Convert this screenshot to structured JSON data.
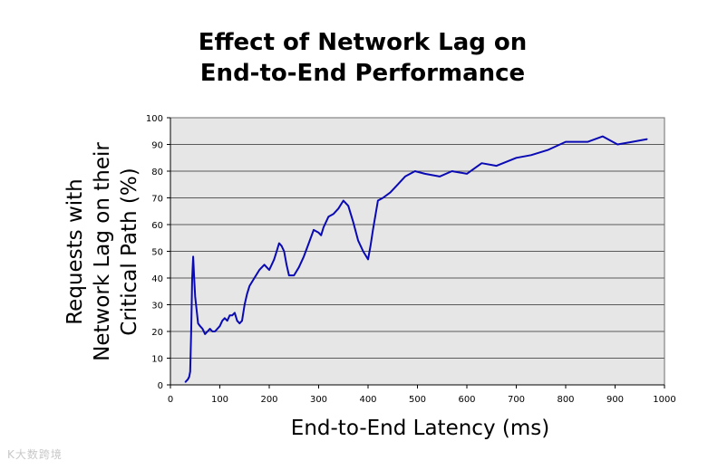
{
  "watermark": "K大数跨境",
  "chart_data": {
    "type": "line",
    "title": [
      "Effect of Network Lag on",
      "End-to-End Performance"
    ],
    "xlabel": "End-to-End Latency (ms)",
    "ylabel": [
      "Requests with",
      "Network Lag on their",
      "Critical Path (%)"
    ],
    "xlim": [
      0,
      1000
    ],
    "ylim": [
      0,
      100
    ],
    "xticks": [
      0,
      100,
      200,
      300,
      400,
      500,
      600,
      700,
      800,
      900,
      1000
    ],
    "yticks": [
      0,
      10,
      20,
      30,
      40,
      50,
      60,
      70,
      80,
      90,
      100
    ],
    "grid": "horizontal",
    "plot_background": "#e6e6e6",
    "line_color": "#0a0ab4",
    "series": [
      {
        "x": [
          30,
          35,
          38,
          40,
          42,
          44,
          46,
          48,
          50,
          53,
          56,
          60,
          65,
          70,
          75,
          80,
          85,
          90,
          95,
          100,
          105,
          110,
          115,
          120,
          125,
          130,
          135,
          140,
          145,
          150,
          155,
          160,
          170,
          180,
          190,
          195,
          200,
          205,
          210,
          215,
          220,
          225,
          230,
          235,
          240,
          250,
          260,
          270,
          280,
          290,
          300,
          305,
          310,
          320,
          330,
          340,
          350,
          355,
          360,
          370,
          380,
          390,
          400,
          405,
          410,
          420,
          430,
          445,
          460,
          475,
          495,
          515,
          545,
          570,
          600,
          630,
          660,
          700,
          730,
          765,
          800,
          845,
          875,
          905,
          935,
          965
        ],
        "y": [
          1,
          2,
          3,
          5,
          20,
          40,
          48,
          40,
          33,
          28,
          23,
          22,
          21,
          19,
          20,
          21,
          20,
          20,
          21,
          22,
          24,
          25,
          24,
          26,
          26,
          27,
          24,
          23,
          24,
          30,
          34,
          37,
          40,
          43,
          45,
          44,
          43,
          45,
          47,
          50,
          53,
          52,
          50,
          45,
          41,
          41,
          44,
          48,
          53,
          58,
          57,
          56,
          59,
          63,
          64,
          66,
          69,
          68,
          67,
          61,
          54,
          50,
          47,
          52,
          58,
          69,
          70,
          72,
          75,
          78,
          80,
          79,
          78,
          80,
          79,
          83,
          82,
          85,
          86,
          88,
          91,
          91,
          93,
          90,
          91,
          92
        ]
      }
    ]
  }
}
